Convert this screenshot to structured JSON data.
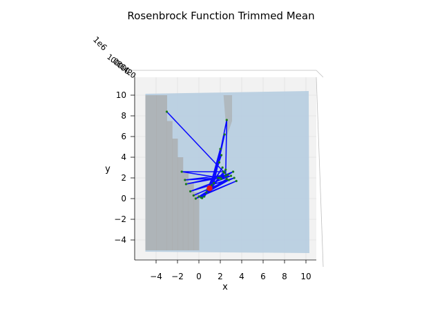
{
  "chart_data": {
    "type": "surface3d",
    "title": "Rosenbrock Function Trimmed Mean",
    "xlabel": "x",
    "ylabel": "y",
    "xlim": [
      -6,
      11
    ],
    "ylim": [
      -6,
      10.5
    ],
    "x_ticks": [
      "−4",
      "−2",
      "0",
      "2",
      "4",
      "6",
      "8",
      "10"
    ],
    "x_tick_values": [
      -4,
      -2,
      0,
      2,
      4,
      6,
      8,
      10
    ],
    "y_ticks": [
      "−4",
      "−2",
      "0",
      "2",
      "4",
      "6",
      "8",
      "10"
    ],
    "y_tick_values": [
      -4,
      -2,
      0,
      2,
      4,
      6,
      8,
      10
    ],
    "z_tick_text": "1e6",
    "grid": true,
    "surface": {
      "x_range": [
        -5,
        10
      ],
      "y_range": [
        -5,
        10
      ],
      "color": "#b6cde0"
    },
    "minimum": {
      "x": 1,
      "y": 1,
      "color": "#e31a1c"
    },
    "path_color": "#0a0aff",
    "point_color": "#1a7a1a",
    "path": [
      [
        -3,
        8.4
      ],
      [
        2.3,
        2.6
      ],
      [
        -1.6,
        2.6
      ],
      [
        2.0,
        2.0
      ],
      [
        -1.3,
        1.8
      ],
      [
        2.7,
        2.3
      ],
      [
        -1.2,
        1.4
      ],
      [
        3.0,
        2.2
      ],
      [
        -0.8,
        0.7
      ],
      [
        3.3,
        2.0
      ],
      [
        -0.5,
        0.3
      ],
      [
        2.8,
        1.8
      ],
      [
        -0.3,
        0.0
      ],
      [
        3.5,
        1.7
      ],
      [
        0.0,
        0.2
      ],
      [
        2.6,
        1.9
      ],
      [
        0.2,
        0.1
      ],
      [
        2.4,
        2.5
      ],
      [
        0.3,
        0.05
      ],
      [
        2.2,
        3.0
      ],
      [
        0.5,
        0.2
      ],
      [
        2.5,
        2.8
      ],
      [
        0.7,
        0.6
      ],
      [
        1.9,
        3.5
      ],
      [
        0.8,
        0.9
      ],
      [
        2.1,
        4.2
      ],
      [
        1.0,
        1.0
      ],
      [
        2.0,
        4.8
      ],
      [
        1.2,
        1.3
      ],
      [
        2.4,
        6.2
      ],
      [
        1.4,
        1.5
      ],
      [
        2.6,
        7.6
      ],
      [
        2.5,
        2.2
      ],
      [
        1.8,
        2.0
      ],
      [
        3.2,
        2.6
      ],
      [
        2.1,
        1.9
      ]
    ]
  }
}
